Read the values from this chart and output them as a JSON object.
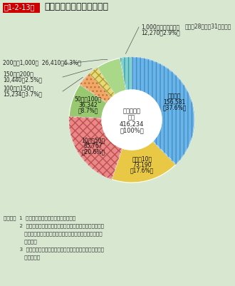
{
  "title_box": "第1-2-13図",
  "title_main": "危険物施設の規模別構成比",
  "subtitle": "（平成28年３月31日現在）",
  "background_color": "#d8e8d0",
  "total_label_line1": "危険物施設",
  "total_label_line2": "総数",
  "total_label_line3": "416,234",
  "total_label_line4": "（100%）",
  "segments": [
    {
      "label": "５倍以下",
      "value": 156581,
      "pct": 37.6,
      "pct_str": "37.6%",
      "fc": "#6ab4e8",
      "hatch": "|||",
      "hc": "#4090c8"
    },
    {
      "label": "５倍～10倍",
      "value": 73190,
      "pct": 17.6,
      "pct_str": "17.6%",
      "fc": "#e8c844",
      "hatch": "",
      "hc": "#e8c844"
    },
    {
      "label": "10倍～50倍",
      "value": 85767,
      "pct": 20.6,
      "pct_str": "20.6%",
      "fc": "#e88888",
      "hatch": "xxx",
      "hc": "#c05050"
    },
    {
      "label": "50倍～100倍",
      "value": 36342,
      "pct": 8.7,
      "pct_str": "8.7%",
      "fc": "#98c870",
      "hatch": "",
      "hc": "#98c870"
    },
    {
      "label": "100倍～150倍",
      "value": 15234,
      "pct": 3.7,
      "pct_str": "3.7%",
      "fc": "#f0a868",
      "hatch": "...",
      "hc": "#c07030"
    },
    {
      "label": "150倍～200倍",
      "value": 10440,
      "pct": 2.5,
      "pct_str": "2.5%",
      "fc": "#e8d878",
      "hatch": "xxx",
      "hc": "#b0a030"
    },
    {
      "label": "200倍～1,000倍",
      "value": 26410,
      "pct": 6.3,
      "pct_str": "6.3%",
      "fc": "#a8d888",
      "hatch": "",
      "hc": "#a8d888"
    },
    {
      "label": "1,000倍を超えるもの",
      "value": 12270,
      "pct": 2.9,
      "pct_str": "2.9%",
      "fc": "#80d0d0",
      "hatch": "|||",
      "hc": "#40a0a8"
    }
  ],
  "note_lines": [
    "（備考）  1  「危険物規制事務調査」により作成",
    "          2  倍数は貯蔵最大数量又は取扱最大数量を危険物の規制に",
    "             関する政令別表第三で定める指定数量で除して得た数値",
    "             である。",
    "          3  小数点第二位を四捨五入のため、合計等が一致しない場",
    "             合がある。"
  ]
}
